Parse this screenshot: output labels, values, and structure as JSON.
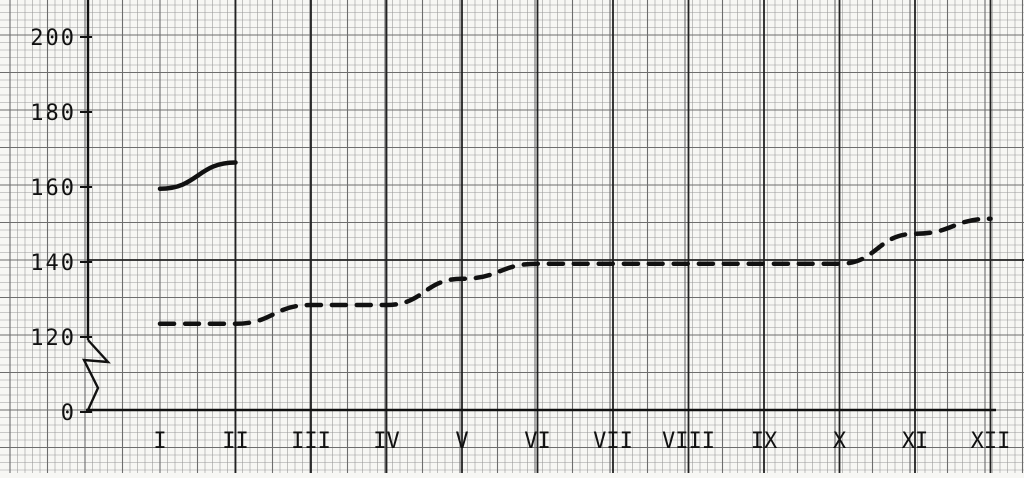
{
  "chart_data": {
    "type": "line",
    "title": "",
    "xlabel": "",
    "ylabel": "",
    "categories": [
      "I",
      "II",
      "III",
      "IV",
      "V",
      "VI",
      "VII",
      "VIII",
      "IX",
      "X",
      "XI",
      "XII"
    ],
    "y_ticks": [
      "0",
      "120",
      "140",
      "160",
      "180",
      "200"
    ],
    "y_axis_break": true,
    "ylim": [
      110,
      200
    ],
    "grid": true,
    "series": [
      {
        "style": "solid",
        "x": [
          "I",
          "II"
        ],
        "values": [
          159,
          166
        ]
      },
      {
        "style": "dashed",
        "x": [
          "I",
          "II",
          "III",
          "IV",
          "V",
          "VI",
          "VII",
          "VIII",
          "IX",
          "X",
          "XI",
          "XII"
        ],
        "values": [
          123,
          123,
          128,
          128,
          135,
          139,
          139,
          139,
          139,
          139,
          147,
          151
        ]
      }
    ]
  },
  "colors": {
    "paper": "#f7f7f4",
    "grid_minor": "#9a9a9a",
    "grid_major": "#222222",
    "ink": "#111111"
  }
}
